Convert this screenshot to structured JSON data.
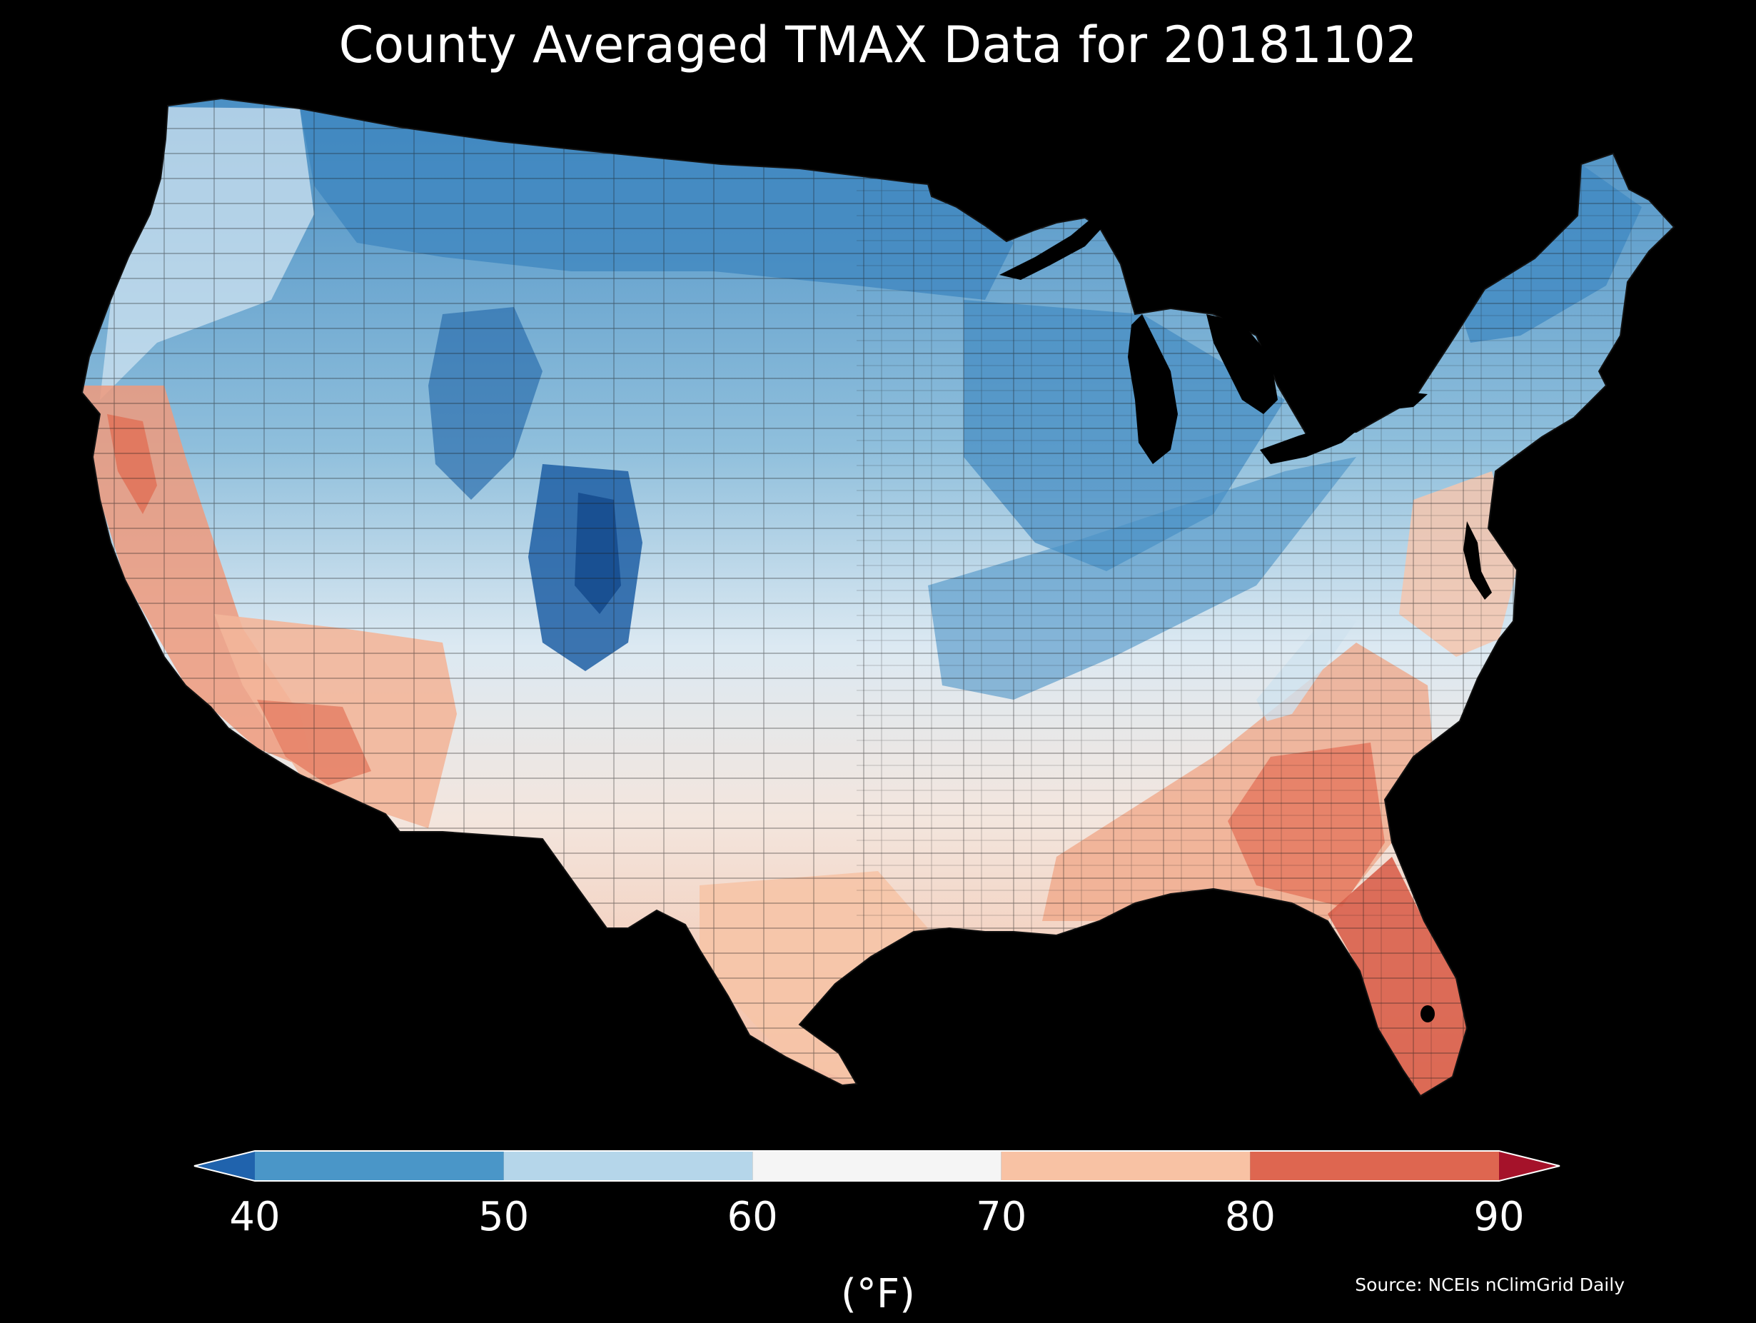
{
  "title": "County Averaged TMAX Data for 20181102",
  "source": "Source: NCEIs nClimGrid Daily",
  "colorbar": {
    "unit": "(°F)",
    "ticks": [
      "40",
      "50",
      "60",
      "70",
      "80",
      "90"
    ],
    "bins": [
      {
        "from": 40,
        "to": 50,
        "color": "#4a96c8"
      },
      {
        "from": 50,
        "to": 60,
        "color": "#b5d6ea"
      },
      {
        "from": 60,
        "to": 70,
        "color": "#f5f5f5"
      },
      {
        "from": 70,
        "to": 80,
        "color": "#f8c2a4"
      },
      {
        "from": 80,
        "to": 90,
        "color": "#de6650"
      }
    ],
    "under_color": "#2063ad",
    "over_color": "#a5122a"
  },
  "colors": {
    "background": "#000000",
    "county_border": "#1a1a1a",
    "lakes": "#000000"
  }
}
